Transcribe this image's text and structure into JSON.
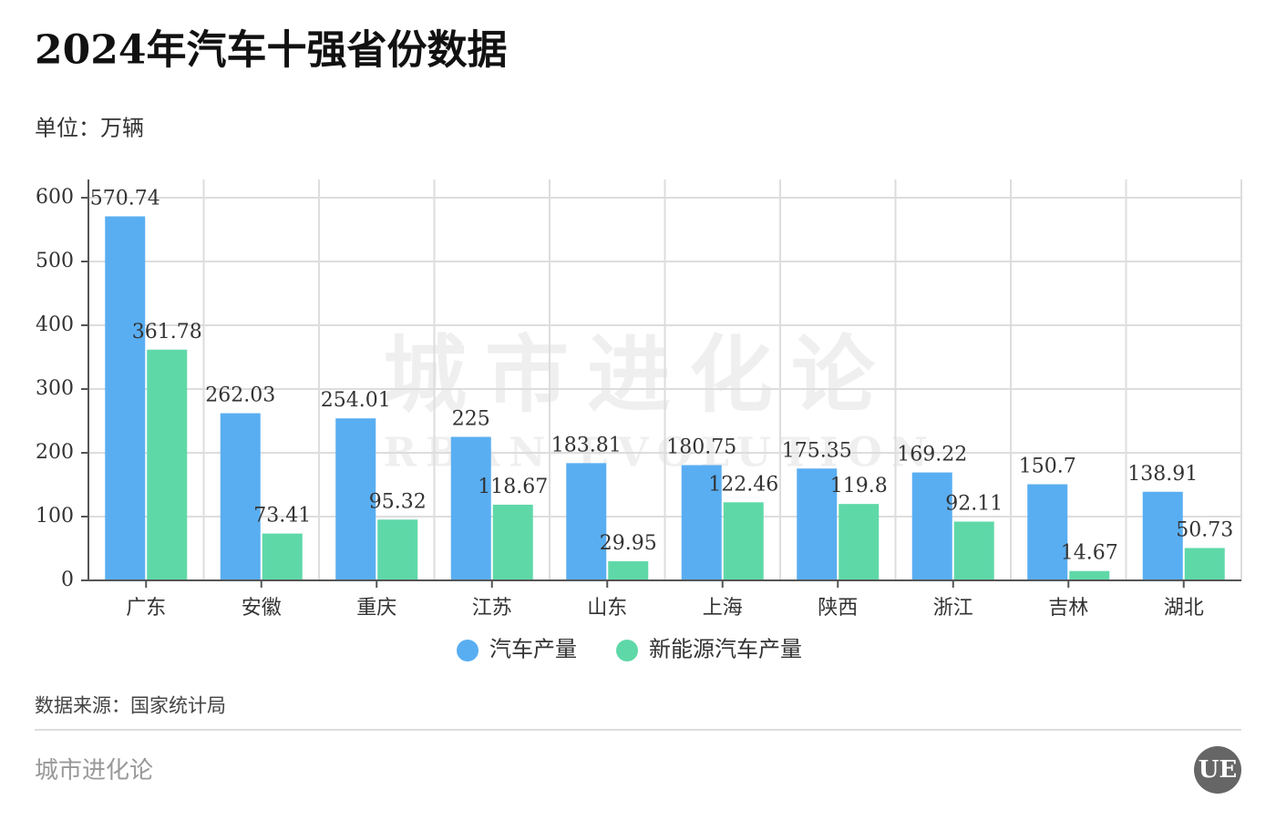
{
  "chart_data": {
    "type": "bar",
    "title": "2024年汽车十强省份数据",
    "subtitle": "单位：万辆",
    "source": "数据来源：国家统计局",
    "footer": "城市进化论",
    "watermark": [
      "城市进化论",
      "URBAN EVOLUTION"
    ],
    "logo": "UE",
    "categories": [
      "广东",
      "安徽",
      "重庆",
      "江苏",
      "山东",
      "上海",
      "陕西",
      "浙江",
      "吉林",
      "湖北"
    ],
    "series": [
      {
        "name": "汽车产量",
        "color": "#59aef2",
        "values": [
          570.74,
          262.03,
          254.01,
          225,
          183.81,
          180.75,
          175.35,
          169.22,
          150.7,
          138.91
        ]
      },
      {
        "name": "新能源汽车产量",
        "color": "#5fd8a8",
        "values": [
          361.78,
          73.41,
          95.32,
          118.67,
          29.95,
          122.46,
          119.8,
          92.11,
          14.67,
          50.73
        ]
      }
    ],
    "ylim": [
      0,
      628.57
    ],
    "yticks": [
      0,
      100,
      200,
      300,
      400,
      500,
      600
    ],
    "grid": true
  }
}
